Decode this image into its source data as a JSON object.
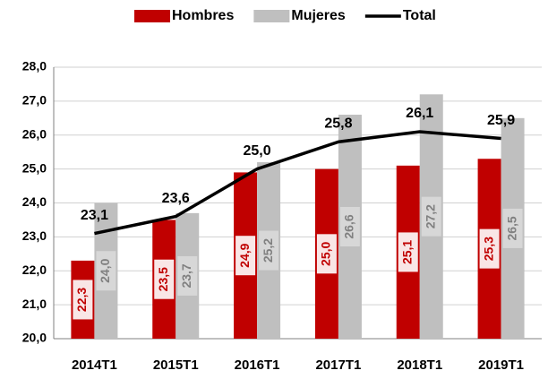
{
  "chart_data": {
    "type": "bar",
    "categories": [
      "2014T1",
      "2015T1",
      "2016T1",
      "2017T1",
      "2018T1",
      "2019T1"
    ],
    "series": [
      {
        "name": "Hombres",
        "color": "#c00000",
        "type": "bar",
        "values": [
          22.3,
          23.5,
          24.9,
          25.0,
          25.1,
          25.3
        ],
        "value_labels": [
          "22,3",
          "23,5",
          "24,9",
          "25,0",
          "25,1",
          "25,3"
        ]
      },
      {
        "name": "Mujeres",
        "color": "#bfbfbf",
        "type": "bar",
        "values": [
          24.0,
          23.7,
          25.2,
          26.6,
          27.2,
          26.5
        ],
        "value_labels": [
          "24,0",
          "23,7",
          "25,2",
          "26,6",
          "27,2",
          "26,5"
        ]
      },
      {
        "name": "Total",
        "color": "#000000",
        "type": "line",
        "values": [
          23.1,
          23.6,
          25.0,
          25.8,
          26.1,
          25.9
        ],
        "value_labels": [
          "23,1",
          "23,6",
          "25,0",
          "25,8",
          "26,1",
          "25,9"
        ]
      }
    ],
    "ylim": [
      20,
      28
    ],
    "yticks": [
      {
        "value": 20,
        "label": "20,0"
      },
      {
        "value": 21,
        "label": "21,0"
      },
      {
        "value": 22,
        "label": "22,0"
      },
      {
        "value": 23,
        "label": "23,0"
      },
      {
        "value": 24,
        "label": "24,0"
      },
      {
        "value": 25,
        "label": "25,0"
      },
      {
        "value": 26,
        "label": "26,0"
      },
      {
        "value": 27,
        "label": "27,0"
      },
      {
        "value": 28,
        "label": "28,0"
      }
    ],
    "grid": true,
    "legend": "top"
  }
}
